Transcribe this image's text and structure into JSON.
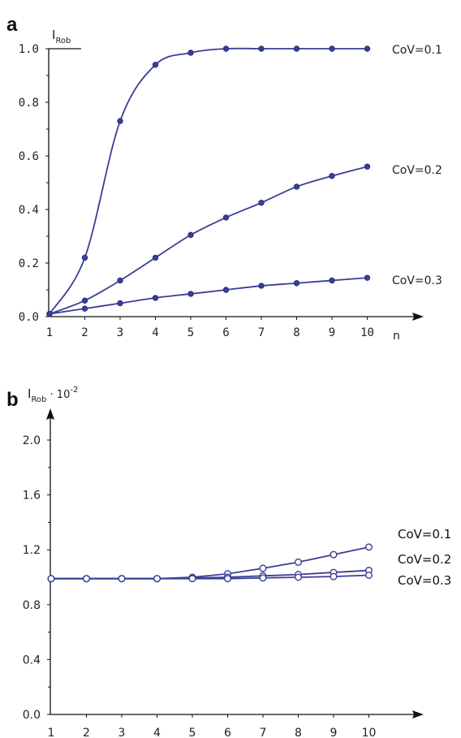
{
  "charts": {
    "a": {
      "panel_letter": "a",
      "ylabel_main": "I",
      "ylabel_sub": "Rob",
      "xlabel": "n",
      "series_labels": [
        "CoV=0.1",
        "CoV=0.2",
        "CoV=0.3"
      ],
      "x_ticks": [
        "1",
        "2",
        "3",
        "4",
        "5",
        "6",
        "7",
        "8",
        "9",
        "10"
      ],
      "y_ticks": [
        "0.0",
        "0.2",
        "0.4",
        "0.6",
        "0.8",
        "1.0"
      ]
    },
    "b": {
      "panel_letter": "b",
      "ylabel_main": "I",
      "ylabel_sub": "Rob",
      "ylabel_factor": " · 10",
      "ylabel_exp": "-2",
      "series_labels": [
        "CoV=0.1",
        "CoV=0.2",
        "CoV=0.3"
      ],
      "x_ticks": [
        "1",
        "2",
        "3",
        "4",
        "5",
        "6",
        "7",
        "8",
        "9",
        "10"
      ],
      "y_ticks": [
        "0.0",
        "0.4",
        "0.8",
        "1.2",
        "1.6",
        "2.0"
      ]
    }
  },
  "chart_data": [
    {
      "type": "line",
      "panel": "a",
      "x": [
        1,
        2,
        3,
        4,
        5,
        6,
        7,
        8,
        9,
        10
      ],
      "series": [
        {
          "name": "CoV=0.1",
          "values": [
            0.01,
            0.22,
            0.73,
            0.94,
            0.985,
            1.0,
            1.0,
            1.0,
            1.0,
            1.0
          ]
        },
        {
          "name": "CoV=0.2",
          "values": [
            0.01,
            0.06,
            0.135,
            0.22,
            0.305,
            0.37,
            0.425,
            0.485,
            0.525,
            0.56
          ]
        },
        {
          "name": "CoV=0.3",
          "values": [
            0.01,
            0.03,
            0.05,
            0.07,
            0.085,
            0.1,
            0.115,
            0.125,
            0.135,
            0.145
          ]
        }
      ],
      "ylim": [
        0,
        1.0
      ],
      "xlabel": "n",
      "ylabel": "IRob",
      "grid": false,
      "colors": {
        "line": "#3a3f94"
      }
    },
    {
      "type": "line",
      "panel": "b",
      "x": [
        1,
        2,
        3,
        4,
        5,
        6,
        7,
        8,
        9,
        10
      ],
      "series": [
        {
          "name": "CoV=0.1",
          "values": [
            0.99,
            0.99,
            0.99,
            0.99,
            1.0,
            1.025,
            1.065,
            1.11,
            1.165,
            1.22
          ]
        },
        {
          "name": "CoV=0.2",
          "values": [
            0.99,
            0.99,
            0.99,
            0.99,
            0.995,
            1.0,
            1.01,
            1.02,
            1.035,
            1.05
          ]
        },
        {
          "name": "CoV=0.3",
          "values": [
            0.99,
            0.99,
            0.99,
            0.99,
            0.99,
            0.99,
            0.995,
            1.0,
            1.005,
            1.015
          ]
        }
      ],
      "ylim": [
        0,
        2.0
      ],
      "ylabel": "IRob · 10-2",
      "grid": false,
      "colors": {
        "line": "#3a3f94"
      }
    }
  ]
}
